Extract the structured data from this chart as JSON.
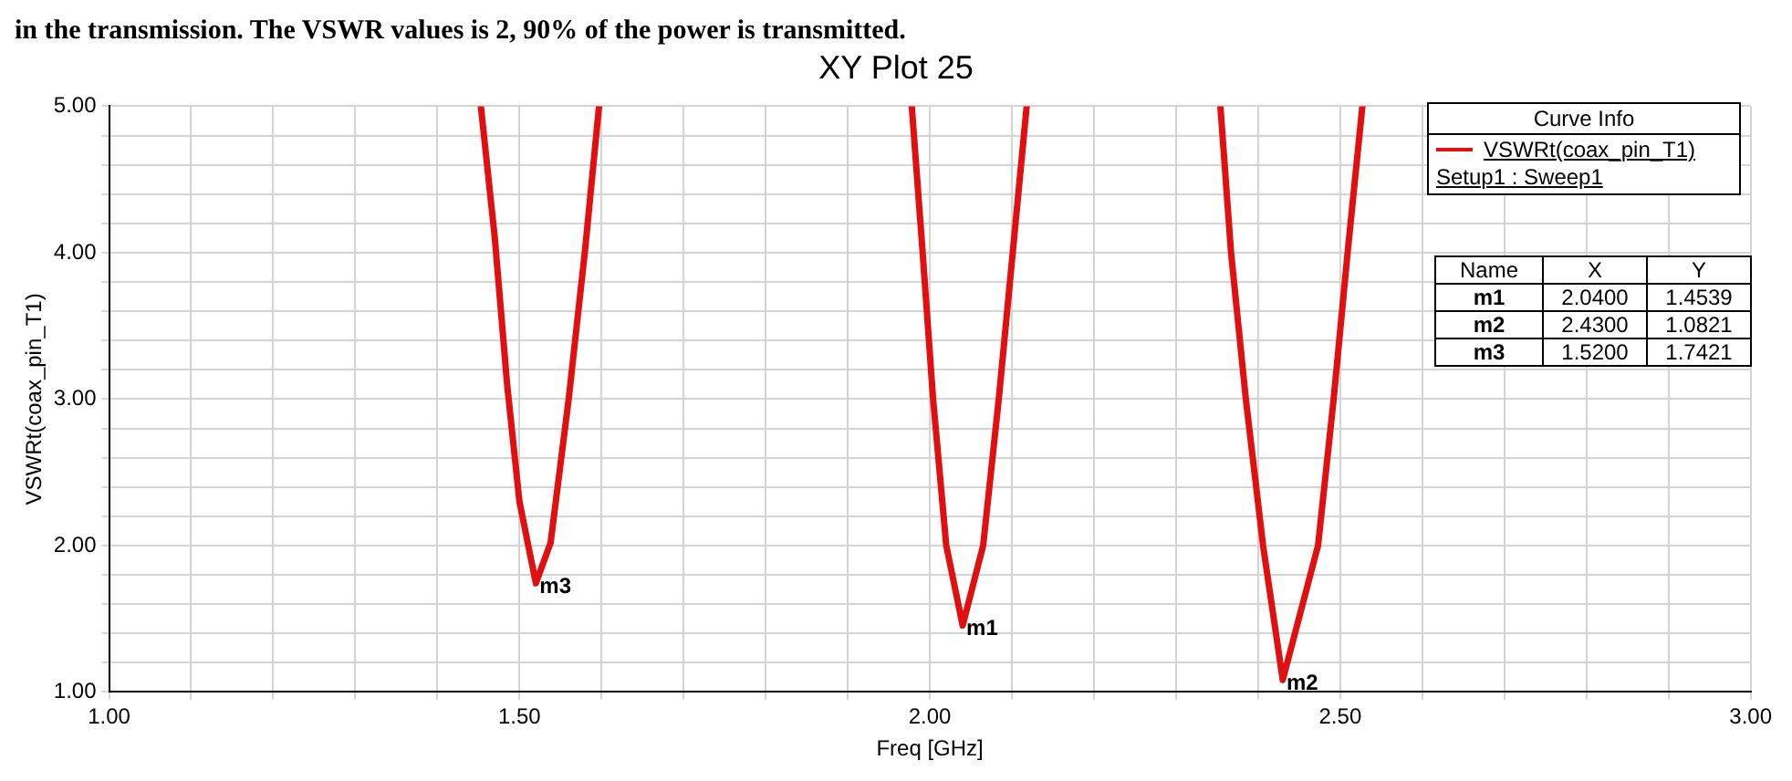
{
  "chart_data": {
    "type": "line",
    "title": "XY Plot 25",
    "xlabel": "Freq [GHz]",
    "ylabel": "VSWRt(coax_pin_T1)",
    "legend_title": "Curve Info",
    "legend": "top right",
    "grid": true,
    "marker": "none",
    "line_style": "solid",
    "xlim": [
      1,
      3
    ],
    "ylim": [
      1,
      5
    ],
    "xticks": [
      {
        "value": 1,
        "label": "1.00"
      },
      {
        "value": 1.1,
        "label": null
      },
      {
        "value": 1.2,
        "label": null
      },
      {
        "value": 1.3,
        "label": null
      },
      {
        "value": 1.4,
        "label": null
      },
      {
        "value": 1.5,
        "label": "1.50"
      },
      {
        "value": 1.6,
        "label": null
      },
      {
        "value": 1.7,
        "label": null
      },
      {
        "value": 1.8,
        "label": null
      },
      {
        "value": 1.9,
        "label": null
      },
      {
        "value": 2,
        "label": "2.00"
      },
      {
        "value": 2.1,
        "label": null
      },
      {
        "value": 2.2,
        "label": null
      },
      {
        "value": 2.3,
        "label": null
      },
      {
        "value": 2.4,
        "label": null
      },
      {
        "value": 2.5,
        "label": "2.50"
      },
      {
        "value": 2.6,
        "label": null
      },
      {
        "value": 2.7,
        "label": null
      },
      {
        "value": 2.8,
        "label": null
      },
      {
        "value": 2.9,
        "label": null
      },
      {
        "value": 3,
        "label": "3.00"
      }
    ],
    "yticks": [
      {
        "value": 1,
        "label": "1.00"
      },
      {
        "value": 1.2,
        "label": null
      },
      {
        "value": 1.4,
        "label": null
      },
      {
        "value": 1.6,
        "label": null
      },
      {
        "value": 1.8,
        "label": null
      },
      {
        "value": 2,
        "label": "2.00"
      },
      {
        "value": 2.2,
        "label": null
      },
      {
        "value": 2.4,
        "label": null
      },
      {
        "value": 2.6,
        "label": null
      },
      {
        "value": 2.8,
        "label": null
      },
      {
        "value": 3,
        "label": "3.00"
      },
      {
        "value": 3.2,
        "label": null
      },
      {
        "value": 3.4,
        "label": null
      },
      {
        "value": 3.6,
        "label": null
      },
      {
        "value": 3.8,
        "label": null
      },
      {
        "value": 4,
        "label": "4.00"
      },
      {
        "value": 4.2,
        "label": null
      },
      {
        "value": 4.4,
        "label": null
      },
      {
        "value": 4.6,
        "label": null
      },
      {
        "value": 4.8,
        "label": null
      },
      {
        "value": 5,
        "label": "5.00"
      }
    ],
    "x": [
      1.453,
      1.47,
      1.485,
      1.5,
      1.52,
      1.538,
      1.56,
      1.58,
      1.597,
      1.8,
      1.978,
      1.991,
      2.004,
      2.02,
      2.04,
      2.065,
      2.084,
      2.101,
      2.118,
      2.25,
      2.354,
      2.367,
      2.385,
      2.406,
      2.43,
      2.473,
      2.492,
      2.509,
      2.527
    ],
    "series": [
      {
        "name": "VSWRt(coax_pin_T1)",
        "color": "#e01010",
        "values": [
          5,
          4.1,
          3.1,
          2.3,
          1.7421,
          2.02,
          3.0,
          4.02,
          5,
          null,
          5,
          4.02,
          3.0,
          2.0,
          1.4539,
          2.0,
          3.0,
          4.0,
          5,
          null,
          5,
          4.0,
          3.0,
          2.0,
          1.0821,
          2.0,
          3.0,
          4.0,
          5
        ]
      }
    ],
    "annotations": [
      "in the transmission. The VSWR values is 2, 90% of the power is transmitted.",
      "Setup1 : Sweep1",
      {
        "text": "m1",
        "x": 2.04,
        "y": 1.4539
      },
      {
        "text": "m2",
        "x": 2.43,
        "y": 1.0821
      },
      {
        "text": "m3",
        "x": 1.52,
        "y": 1.7421
      },
      "Name",
      "X",
      "Y",
      "m1",
      "2.0400",
      "1.4539",
      "m2",
      "2.4300",
      "1.0821",
      "m3",
      "1.5200",
      "1.7421"
    ]
  }
}
